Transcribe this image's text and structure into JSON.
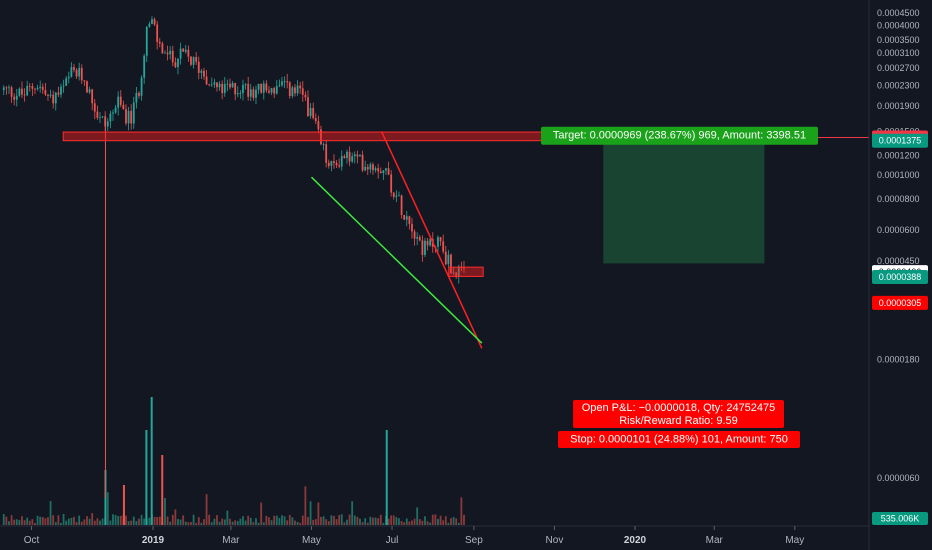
{
  "chart_data": {
    "type": "candlestick",
    "x_ticks": [
      "Oct",
      "2019",
      "Mar",
      "May",
      "Jul",
      "Sep",
      "Nov",
      "2020",
      "Mar",
      "May"
    ],
    "bold_ticks": [
      "2019",
      "2020"
    ],
    "y_ticks": [
      "0.0004500",
      "0.0004000",
      "0.0003500",
      "0.0003100",
      "0.0002700",
      "0.0002300",
      "0.0001900",
      "0.0001500",
      "0.0001200",
      "0.0001000",
      "0.0000800",
      "0.0000600",
      "0.0000450",
      "0.0000310",
      "0.0000180",
      "0.0000060"
    ],
    "y_scale": "log",
    "price_badges": [
      {
        "label": "0.0001416",
        "value": 0.0001416,
        "color": "#f23645"
      },
      {
        "label": "0.0001375",
        "value": 0.0001375,
        "color": "#089981"
      },
      {
        "label": "0.0000406",
        "value": 4.06e-05,
        "color": "#ffffff"
      },
      {
        "label": "0.0000388",
        "value": 3.88e-05,
        "color": "#089981"
      },
      {
        "label": "0.0000305",
        "value": 3.05e-05,
        "color": "#ff0000"
      }
    ],
    "volume_badge": "535.006K",
    "price_path": [
      {
        "date": "2018-09-10",
        "price": 0.00022
      },
      {
        "date": "2018-09-25",
        "price": 0.00021
      },
      {
        "date": "2018-10-05",
        "price": 0.000235
      },
      {
        "date": "2018-10-15",
        "price": 0.0002
      },
      {
        "date": "2018-10-25",
        "price": 0.00022
      },
      {
        "date": "2018-11-01",
        "price": 0.00026
      },
      {
        "date": "2018-11-10",
        "price": 0.000245
      },
      {
        "date": "2018-11-20",
        "price": 0.000175
      },
      {
        "date": "2018-11-26",
        "price": 0.00016
      },
      {
        "date": "2018-12-05",
        "price": 0.000195
      },
      {
        "date": "2018-12-15",
        "price": 0.000165
      },
      {
        "date": "2018-12-22",
        "price": 0.00023
      },
      {
        "date": "2018-12-27",
        "price": 0.00039
      },
      {
        "date": "2019-01-01",
        "price": 0.00041
      },
      {
        "date": "2019-01-05",
        "price": 0.000335
      },
      {
        "date": "2019-01-15",
        "price": 0.00029
      },
      {
        "date": "2019-01-25",
        "price": 0.000305
      },
      {
        "date": "2019-02-05",
        "price": 0.00027
      },
      {
        "date": "2019-02-20",
        "price": 0.00022
      },
      {
        "date": "2019-03-10",
        "price": 0.000225
      },
      {
        "date": "2019-03-25",
        "price": 0.00022
      },
      {
        "date": "2019-04-10",
        "price": 0.000225
      },
      {
        "date": "2019-04-25",
        "price": 0.00021
      },
      {
        "date": "2019-05-05",
        "price": 0.00015
      },
      {
        "date": "2019-05-15",
        "price": 0.000105
      },
      {
        "date": "2019-05-25",
        "price": 0.00012
      },
      {
        "date": "2019-06-10",
        "price": 0.000112
      },
      {
        "date": "2019-06-25",
        "price": 0.000108
      },
      {
        "date": "2019-07-05",
        "price": 8e-05
      },
      {
        "date": "2019-07-15",
        "price": 6.5e-05
      },
      {
        "date": "2019-07-25",
        "price": 5e-05
      },
      {
        "date": "2019-08-05",
        "price": 5.5e-05
      },
      {
        "date": "2019-08-15",
        "price": 4.2e-05
      },
      {
        "date": "2019-08-25",
        "price": 3.9e-05
      }
    ],
    "resistance_zone": {
      "date_from": "2018-10-25",
      "date_to": "2019-10-30",
      "price_low": 0.0001375,
      "price_high": 0.000149
    },
    "entry_zone": {
      "date_from": "2019-08-13",
      "date_to": "2019-09-08",
      "price_low": 3.9e-05,
      "price_high": 4.25e-05
    },
    "red_trendline": [
      {
        "date": "2019-06-23",
        "price": 0.00015
      },
      {
        "date": "2019-09-07",
        "price": 2e-05
      }
    ],
    "green_trendline": [
      {
        "date": "2019-05-01",
        "price": 9.8e-05
      },
      {
        "date": "2019-09-07",
        "price": 2.1e-05
      }
    ],
    "target_zone": {
      "date_from": "2019-12-08",
      "date_to": "2020-04-08",
      "price_low": 4.4e-05,
      "price_high": 0.0001375
    },
    "target_label": "Target: 0.0000969 (238.67%) 969, Amount: 3398.51",
    "pnl_label": "Open P&L: −0.0000018, Qty: 24752475",
    "rr_label": "Risk/Reward Ratio: 9.59",
    "stop_label": "Stop: 0.0000101 (24.88%) 101, Amount: 750",
    "red_level": 0.0001416
  }
}
